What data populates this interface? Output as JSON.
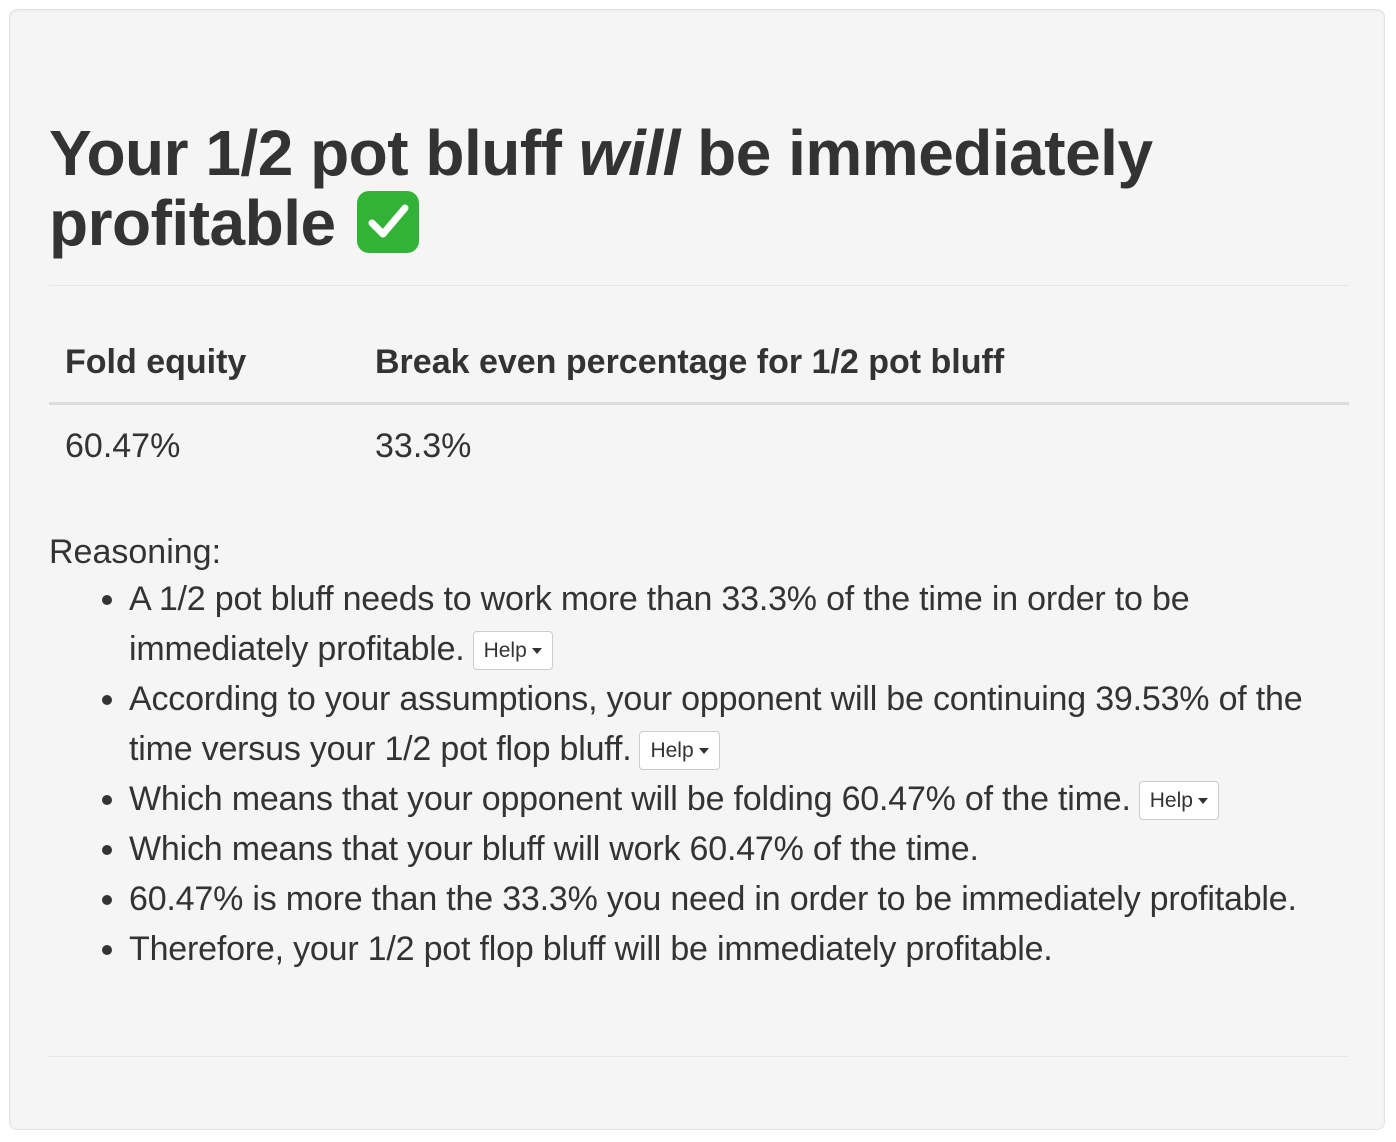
{
  "headline": {
    "prefix": "Your 1/2 pot bluff ",
    "emphasis": "will",
    "suffix": " be immediately profitable "
  },
  "status_icon": "check-mark-emoji-icon",
  "colors": {
    "panel_bg": "#f5f5f5",
    "text": "#333333",
    "check_green": "#32b337"
  },
  "table": {
    "headers": [
      "Fold equity",
      "Break even percentage for 1/2 pot bluff"
    ],
    "values": [
      "60.47%",
      "33.3%"
    ]
  },
  "reasoning": {
    "label": "Reasoning:",
    "help_label": "Help",
    "items": [
      {
        "text": "A 1/2 pot bluff needs to work more than 33.3% of the time in order to be immediately profitable."
      },
      {
        "text": "According to your assumptions, your opponent will be continuing 39.53% of the time versus your 1/2 pot flop bluff."
      },
      {
        "text": "Which means that your opponent will be folding 60.47% of the time."
      },
      {
        "text": "Which means that your bluff will work 60.47% of the time."
      },
      {
        "text": "60.47% is more than the 33.3% you need in order to be immediately profitable."
      },
      {
        "text": "Therefore, your 1/2 pot flop bluff will be immediately profitable."
      }
    ]
  }
}
